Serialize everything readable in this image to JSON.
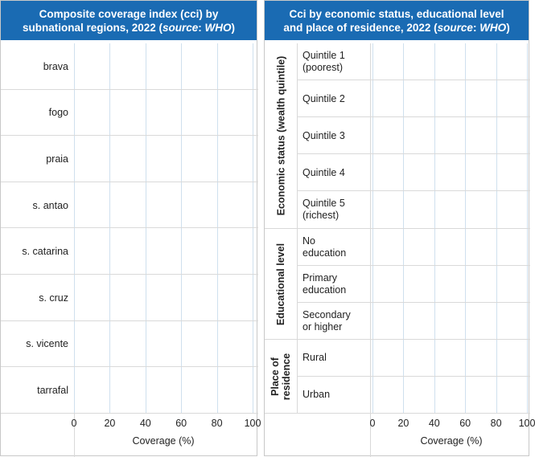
{
  "chart_data": [
    {
      "type": "bar",
      "orientation": "horizontal",
      "title": [
        "Composite coverage index (cci) by",
        "subnational regions, 2022 (source: WHO)"
      ],
      "categories": [
        "brava",
        "fogo",
        "praia",
        "s. antao",
        "s. catarina",
        "s. cruz",
        "s. vicente",
        "tarrafal"
      ],
      "values": [
        null,
        null,
        null,
        null,
        null,
        null,
        null,
        null
      ],
      "xlabel": "Coverage (%)",
      "xticks": [
        "0",
        "20",
        "40",
        "60",
        "80",
        "100"
      ],
      "xlim": [
        0,
        100
      ],
      "grid": true
    },
    {
      "type": "bar",
      "orientation": "horizontal",
      "title": [
        "Cci by economic status, educational level",
        "and place of residence, 2022 (source: WHO)"
      ],
      "groups": [
        {
          "label": "Economic status (wealth quintile)",
          "categories": [
            [
              "Quintile 1",
              "(poorest)"
            ],
            [
              "Quintile 2"
            ],
            [
              "Quintile 3"
            ],
            [
              "Quintile 4"
            ],
            [
              "Quintile 5",
              "(richest)"
            ]
          ],
          "values": [
            null,
            null,
            null,
            null,
            null
          ]
        },
        {
          "label": "Educational level",
          "categories": [
            [
              "No",
              "education"
            ],
            [
              "Primary",
              "education"
            ],
            [
              "Secondary",
              "or higher"
            ]
          ],
          "values": [
            null,
            null,
            null
          ]
        },
        {
          "label": [
            "Place of",
            "residence"
          ],
          "categories": [
            [
              "Rural"
            ],
            [
              "Urban"
            ]
          ],
          "values": [
            null,
            null
          ]
        }
      ],
      "xlabel": "Coverage (%)",
      "xticks": [
        "0",
        "20",
        "40",
        "60",
        "80",
        "100"
      ],
      "xlim": [
        0,
        100
      ],
      "grid": true
    }
  ]
}
